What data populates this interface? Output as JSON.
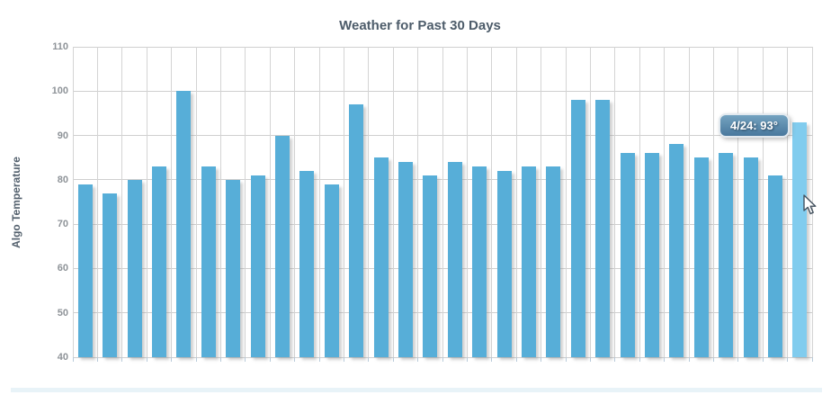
{
  "chart": {
    "tooltip": {
      "text": "4/24: 93°"
    }
  },
  "chart_data": {
    "type": "bar",
    "title": "Weather for Past 30 Days",
    "xlabel": "",
    "ylabel": "Algo Temperature",
    "ylim": [
      40,
      110
    ],
    "yticks": [
      110,
      100,
      90,
      80,
      70,
      60,
      50,
      40
    ],
    "grid": true,
    "num_bars": 30,
    "values": [
      79,
      77,
      80,
      83,
      100,
      83,
      80,
      81,
      90,
      82,
      79,
      97,
      85,
      84,
      81,
      84,
      83,
      82,
      83,
      83,
      98,
      98,
      86,
      86,
      88,
      85,
      86,
      85,
      81,
      93
    ],
    "highlighted_index": 29,
    "highlight_tooltip": "4/24: 93°",
    "bar_color": "#57aed8",
    "highlight_color": "#81ccee",
    "grid_color": "#d0d0d0",
    "legend": "none"
  }
}
